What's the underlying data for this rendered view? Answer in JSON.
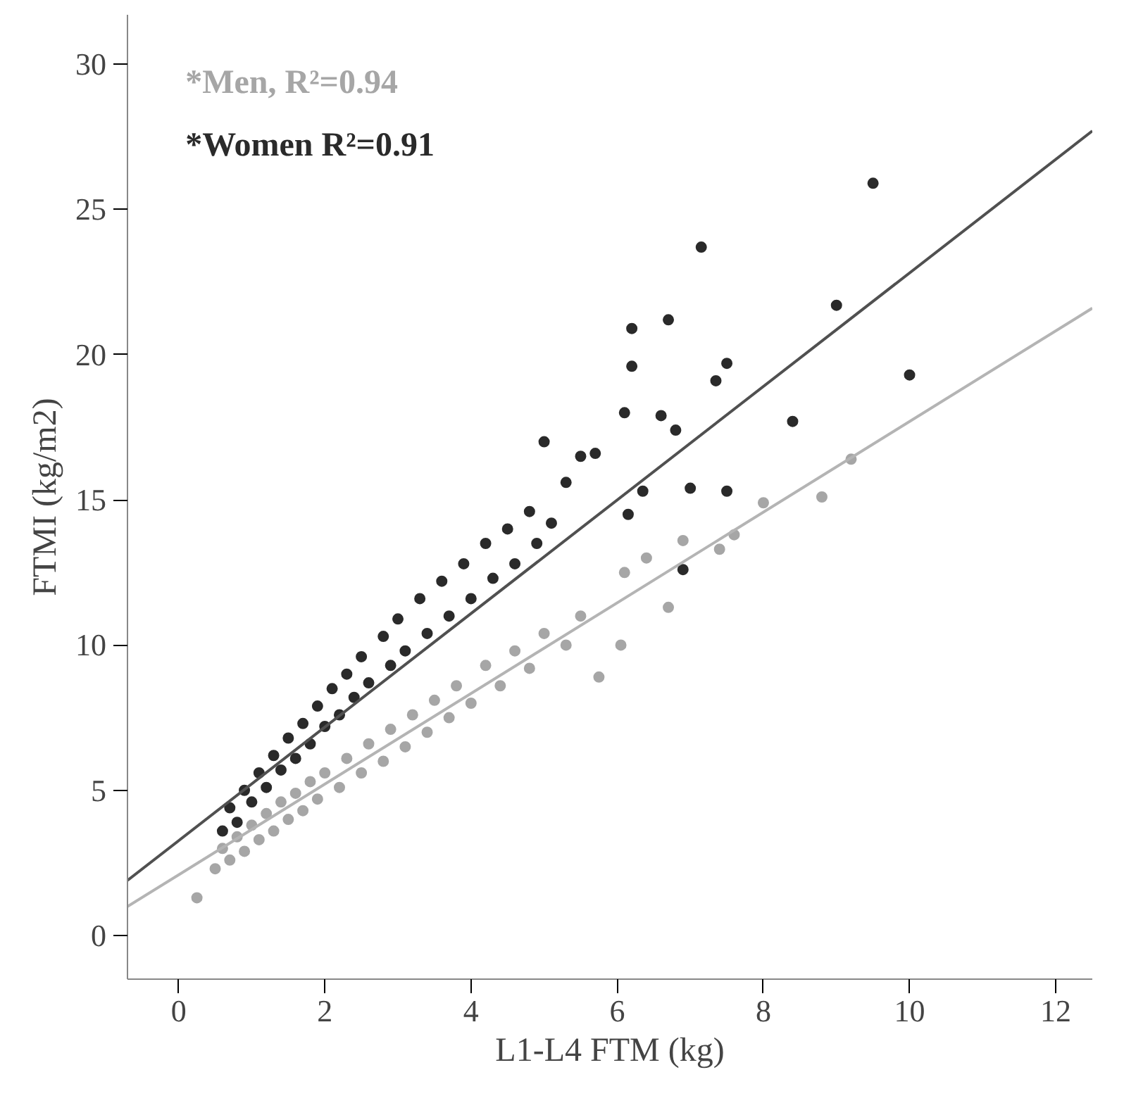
{
  "chart_data": {
    "type": "scatter",
    "xlabel": "L1-L4 FTM (kg)",
    "ylabel": "FTMI (kg/m2)",
    "xlim": [
      -0.7,
      12.5
    ],
    "ylim": [
      -1.5,
      31.7
    ],
    "xticks": [
      0,
      2,
      4,
      6,
      8,
      10,
      12
    ],
    "yticks": [
      0,
      5,
      10,
      15,
      20,
      25,
      30
    ],
    "grid": false,
    "marker": "circle",
    "series": [
      {
        "name": "*Men, R²=0.94",
        "color": "#a6a6a6",
        "x": [
          0.25,
          0.5,
          0.6,
          0.7,
          0.8,
          0.9,
          1.0,
          1.1,
          1.2,
          1.3,
          1.4,
          1.5,
          1.6,
          1.7,
          1.8,
          1.9,
          2.0,
          2.2,
          2.3,
          2.5,
          2.6,
          2.8,
          2.9,
          3.1,
          3.2,
          3.4,
          3.5,
          3.7,
          3.8,
          4.0,
          4.2,
          4.4,
          4.6,
          4.8,
          5.0,
          5.3,
          5.5,
          5.75,
          6.05,
          6.1,
          6.4,
          6.7,
          6.9,
          7.4,
          7.6,
          8.0,
          8.8,
          9.2
        ],
        "values": [
          1.3,
          2.3,
          3.0,
          2.6,
          3.4,
          2.9,
          3.8,
          3.3,
          4.2,
          3.6,
          4.6,
          4.0,
          4.9,
          4.3,
          5.3,
          4.7,
          5.6,
          5.1,
          6.1,
          5.6,
          6.6,
          6.0,
          7.1,
          6.5,
          7.6,
          7.0,
          8.1,
          7.5,
          8.6,
          8.0,
          9.3,
          8.6,
          9.8,
          9.2,
          10.4,
          10.0,
          11.0,
          8.9,
          10.0,
          12.5,
          13.0,
          11.3,
          13.6,
          13.3,
          13.8,
          14.9,
          15.1,
          16.4
        ]
      },
      {
        "name": "*Women R²=0.91",
        "color": "#2a2a2a",
        "x": [
          0.6,
          0.7,
          0.8,
          0.9,
          1.0,
          1.1,
          1.2,
          1.3,
          1.4,
          1.5,
          1.6,
          1.7,
          1.8,
          1.9,
          2.0,
          2.1,
          2.2,
          2.3,
          2.4,
          2.5,
          2.6,
          2.8,
          2.9,
          3.0,
          3.1,
          3.3,
          3.4,
          3.6,
          3.7,
          3.9,
          4.0,
          4.2,
          4.3,
          4.5,
          4.6,
          4.8,
          4.9,
          5.0,
          5.1,
          5.3,
          5.5,
          5.7,
          6.1,
          6.15,
          6.2,
          6.2,
          6.35,
          6.6,
          6.7,
          6.8,
          6.9,
          7.0,
          7.15,
          7.35,
          7.5,
          7.5,
          8.4,
          9.0,
          9.5,
          10.0
        ],
        "values": [
          3.6,
          4.4,
          3.9,
          5.0,
          4.6,
          5.6,
          5.1,
          6.2,
          5.7,
          6.8,
          6.1,
          7.3,
          6.6,
          7.9,
          7.2,
          8.5,
          7.6,
          9.0,
          8.2,
          9.6,
          8.7,
          10.3,
          9.3,
          10.9,
          9.8,
          11.6,
          10.4,
          12.2,
          11.0,
          12.8,
          11.6,
          13.5,
          12.3,
          14.0,
          12.8,
          14.6,
          13.5,
          17.0,
          14.2,
          15.6,
          16.5,
          16.6,
          18.0,
          14.5,
          20.9,
          19.6,
          15.3,
          17.9,
          21.2,
          17.4,
          12.6,
          15.4,
          23.7,
          19.1,
          19.7,
          15.3,
          17.7,
          21.7,
          25.9,
          19.3
        ]
      },
      {
        "type": "line",
        "marker": "none",
        "color": "#b4b4b4",
        "x": [
          -0.7,
          12.5
        ],
        "values": [
          1.0,
          21.6
        ]
      },
      {
        "type": "line",
        "marker": "none",
        "color": "#505050",
        "x": [
          -0.7,
          12.5
        ],
        "values": [
          1.9,
          27.7
        ]
      }
    ]
  }
}
